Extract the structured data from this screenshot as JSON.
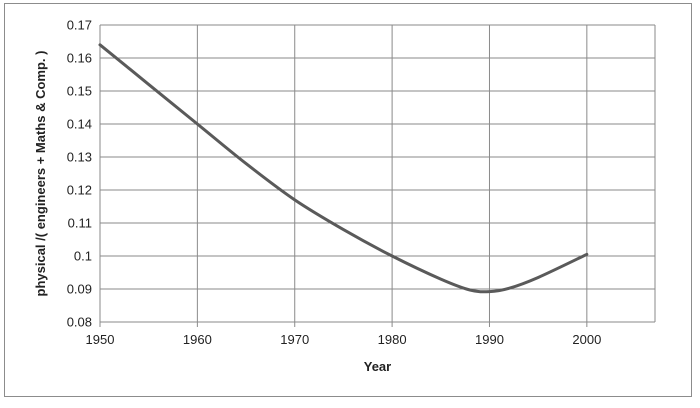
{
  "chart_data": {
    "type": "line",
    "title": "",
    "xlabel": "Year",
    "ylabel": "physical /( engineers + Maths & Comp. )",
    "xlim": [
      1950,
      2007
    ],
    "ylim": [
      0.08,
      0.17
    ],
    "xticks": [
      1950,
      1960,
      1970,
      1980,
      1990,
      2000
    ],
    "xtick_labels": [
      "1950",
      "1960",
      "1970",
      "1980",
      "1990",
      "2000"
    ],
    "yticks": [
      0.08,
      0.09,
      0.1,
      0.11,
      0.12,
      0.13,
      0.14,
      0.15,
      0.16,
      0.17
    ],
    "ytick_labels": [
      "0.08",
      "0.09",
      "0.1",
      "0.11",
      "0.12",
      "0.13",
      "0.14",
      "0.15",
      "0.16",
      "0.17"
    ],
    "grid": true,
    "legend": "none",
    "series": [
      {
        "color": "#5a5a5a",
        "x": [
          1950,
          1955,
          1960,
          1965,
          1970,
          1975,
          1980,
          1985,
          1988,
          1990,
          1992,
          1995,
          2000
        ],
        "y": [
          0.164,
          0.152,
          0.14,
          0.128,
          0.117,
          0.108,
          0.1,
          0.093,
          0.0897,
          0.0892,
          0.0902,
          0.0935,
          0.1005
        ]
      }
    ]
  }
}
